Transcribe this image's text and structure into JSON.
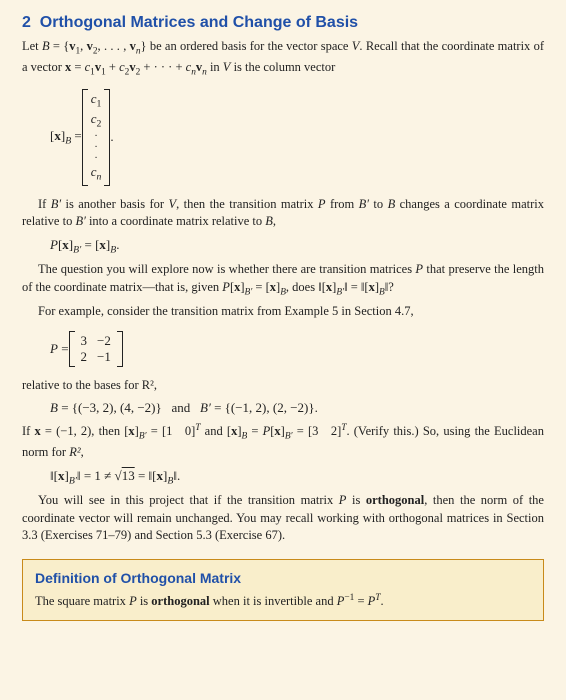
{
  "section_number": "2",
  "section_title": "Orthogonal Matrices and Change of Basis",
  "p1a": "Let ",
  "p1b": " be an ordered basis for the vector space ",
  "p1c": ". Recall that the coordinate matrix of a vector ",
  "p1d": " in ",
  "p1e": " is the column vector",
  "basis_set": "B = {v₁, v₂, . . . , vₙ}",
  "vec_eq": "x = c₁v₁ + c₂v₂ + · · · + cₙvₙ",
  "V": "V",
  "coord_label": "[x]",
  "coord_sub": "B",
  "col_entries": [
    "c₁",
    "c₂",
    "⋮",
    "cₙ"
  ],
  "p2a": "If ",
  "p2b": " is another basis for ",
  "p2c": ", then the transition matrix ",
  "p2d": " from ",
  "p2e": " to ",
  "p2f": " changes a coordinate matrix relative to ",
  "p2g": " into a coordinate matrix relative to ",
  "Bp": "B′",
  "B": "B",
  "P": "P",
  "eq_transition": "P[x]_{B′} = [x]_{B}.",
  "p3a": "The question you will explore now is whether there are transition matrices ",
  "p3b": " that preserve the length of the coordinate matrix—that is, given ",
  "p3c": ", does ",
  "eq_given": "P[x]_{B′} = [x]_{B}",
  "eq_norm_q": "‖[x]_{B′}‖ = ‖[x]_{B}‖?",
  "p4": "For example, consider the transition matrix from Example 5 in Section 4.7,",
  "Peq": "P = ",
  "Pmat": [
    [
      "3",
      "−2"
    ],
    [
      "2",
      "−1"
    ]
  ],
  "p5": "relative to the bases for R²,",
  "eq_bases": "B = {(−3, 2), (4, −2)}    and    B′ = {(−1, 2), (2, −2)}.",
  "p6a": "If ",
  "p6b": ", then ",
  "p6c": " and ",
  "p6d": ". (Verify this.) So, using the Euclidean norm for ",
  "p6e": ",",
  "x_vec": "x = (−1, 2)",
  "xbprime": "[x]_{B′} = [1   0]ᵀ",
  "xb": "[x]_{B} = P[x]_{B′} = [3   2]ᵀ",
  "R2": "R²",
  "eq_norm_neq": "‖[x]_{B′}‖ = 1 ≠ √13 = ‖[x]_{B}‖.",
  "p7a": "You will see in this project that if the transition matrix ",
  "p7b": " is ",
  "orth": "orthogonal",
  "p7c": ", then the norm of the coordinate vector will remain unchanged. You may recall working with orthogonal matrices in Section 3.3 (Exercises 71–79) and Section 5.3 (Exercise 67).",
  "def_title": "Definition of Orthogonal Matrix",
  "def_a": "The square matrix ",
  "def_b": " is ",
  "def_c": " when it is invertible and ",
  "def_eq": "P⁻¹ = Pᵀ."
}
